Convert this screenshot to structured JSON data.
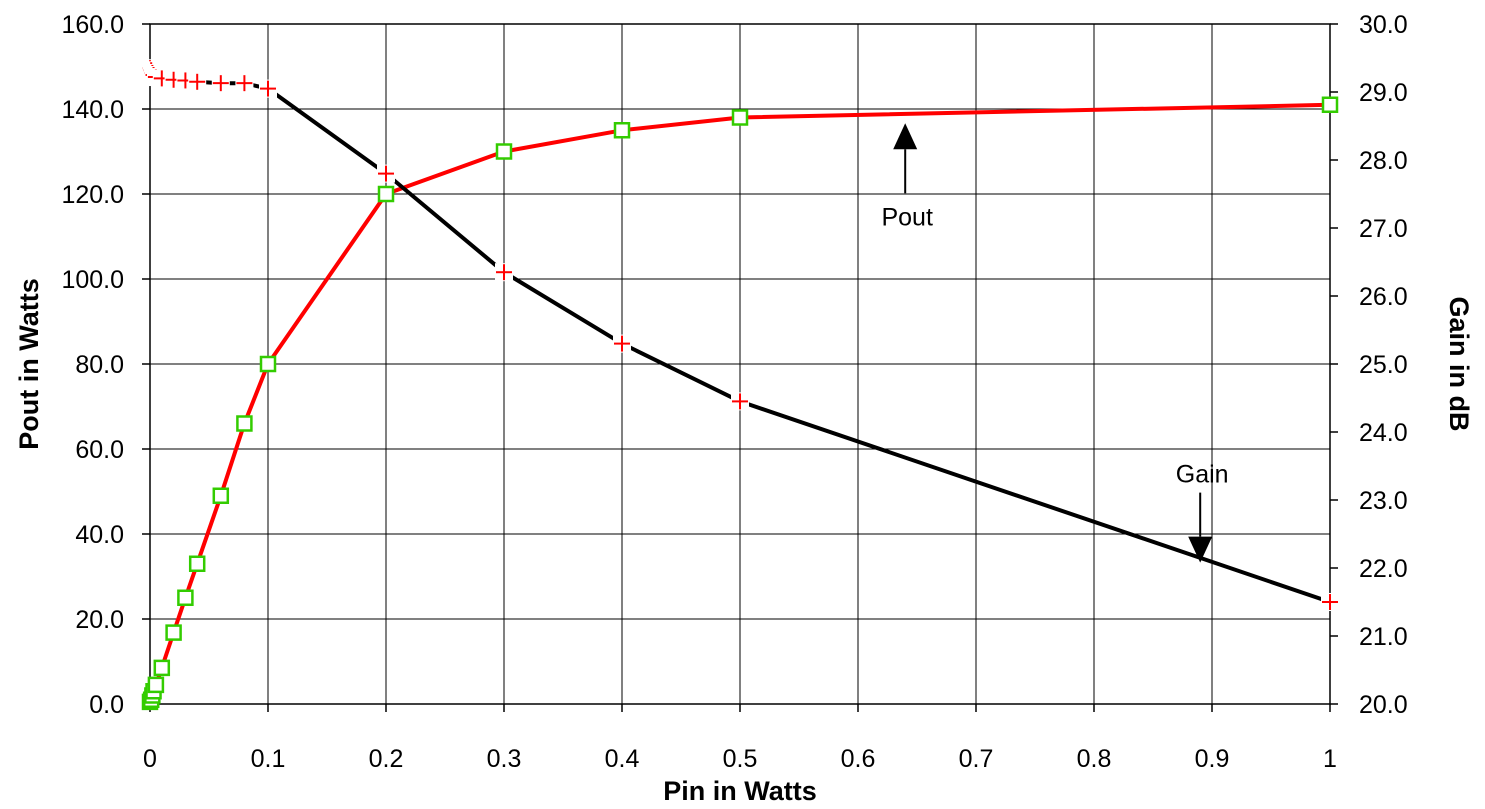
{
  "chart_data": {
    "type": "line",
    "xlabel": "Pin in Watts",
    "ylabel": "Pout in Watts",
    "y2label": "Gain in dB",
    "xlim": [
      0,
      1
    ],
    "ylim": [
      0,
      160
    ],
    "y2lim": [
      20,
      30
    ],
    "grid": true,
    "x_ticks": [
      {
        "value": 0,
        "label": "0"
      },
      {
        "value": 0.1,
        "label": "0.1"
      },
      {
        "value": 0.2,
        "label": "0.2"
      },
      {
        "value": 0.3,
        "label": "0.3"
      },
      {
        "value": 0.4,
        "label": "0.4"
      },
      {
        "value": 0.5,
        "label": "0.5"
      },
      {
        "value": 0.6,
        "label": "0.6"
      },
      {
        "value": 0.7,
        "label": "0.7"
      },
      {
        "value": 0.8,
        "label": "0.8"
      },
      {
        "value": 0.9,
        "label": "0.9"
      },
      {
        "value": 1,
        "label": "1"
      }
    ],
    "y_ticks": [
      {
        "value": 0,
        "label": "0.0"
      },
      {
        "value": 20,
        "label": "20.0"
      },
      {
        "value": 40,
        "label": "40.0"
      },
      {
        "value": 60,
        "label": "60.0"
      },
      {
        "value": 80,
        "label": "80.0"
      },
      {
        "value": 100,
        "label": "100.0"
      },
      {
        "value": 120,
        "label": "120.0"
      },
      {
        "value": 140,
        "label": "140.0"
      },
      {
        "value": 160,
        "label": "160.0"
      }
    ],
    "y2_ticks": [
      {
        "value": 20,
        "label": "20.0"
      },
      {
        "value": 21,
        "label": "21.0"
      },
      {
        "value": 22,
        "label": "22.0"
      },
      {
        "value": 23,
        "label": "23.0"
      },
      {
        "value": 24,
        "label": "24.0"
      },
      {
        "value": 25,
        "label": "25.0"
      },
      {
        "value": 26,
        "label": "26.0"
      },
      {
        "value": 27,
        "label": "27.0"
      },
      {
        "value": 28,
        "label": "28.0"
      },
      {
        "value": 29,
        "label": "29.0"
      },
      {
        "value": 30,
        "label": "30.0"
      }
    ],
    "series": [
      {
        "axis": "left",
        "color": "#ff0000",
        "marker": "square",
        "marker_color": "#33cc00",
        "x": [
          0,
          0.001,
          0.002,
          0.003,
          0.005,
          0.01,
          0.02,
          0.03,
          0.04,
          0.06,
          0.08,
          0.1,
          0.2,
          0.3,
          0.4,
          0.5,
          1.0
        ],
        "y": [
          0.5,
          1.0,
          2.0,
          3.0,
          4.5,
          8.5,
          16.8,
          25.0,
          33.0,
          49.0,
          66.0,
          80.0,
          120.0,
          130.0,
          135.0,
          138.0,
          141.0
        ]
      },
      {
        "axis": "right",
        "color": "#000000",
        "marker": "plus",
        "marker_color": "#ff0000",
        "x": [
          0,
          0.001,
          0.002,
          0.003,
          0.005,
          0.01,
          0.02,
          0.03,
          0.04,
          0.06,
          0.08,
          0.1,
          0.2,
          0.3,
          0.4,
          0.5,
          1.0
        ],
        "y": [
          29.35,
          29.32,
          29.28,
          29.25,
          29.22,
          29.2,
          29.18,
          29.17,
          29.15,
          29.13,
          29.13,
          29.05,
          27.8,
          26.35,
          25.3,
          24.45,
          21.5
        ]
      }
    ],
    "annotations": [
      {
        "text": "Pout",
        "target_x": 0.64,
        "target_y": 139.0,
        "axis": "left",
        "arrow": "up"
      },
      {
        "text": "Gain",
        "target_x": 0.89,
        "target_y2": 22.05,
        "axis": "right",
        "arrow": "down"
      }
    ]
  }
}
